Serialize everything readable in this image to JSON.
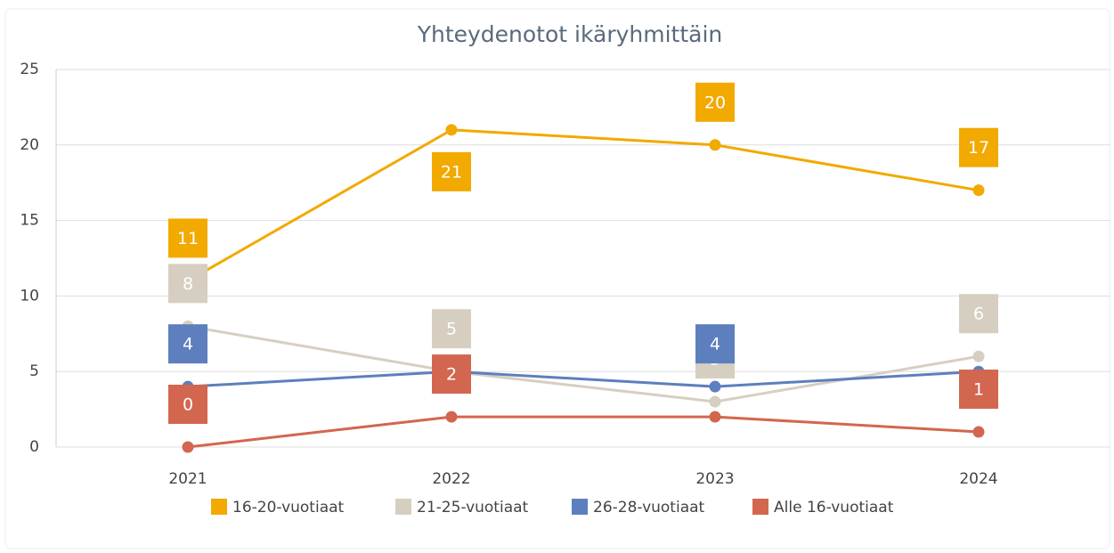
{
  "chart_data": {
    "type": "line",
    "title": "Yhteydenotot ikäryhmittäin",
    "categories": [
      "2021",
      "2022",
      "2023",
      "2024"
    ],
    "series": [
      {
        "name": "16-20-vuotiaat",
        "color": "#f2a900",
        "values": [
          11,
          21,
          20,
          17
        ]
      },
      {
        "name": "21-25-vuotiaat",
        "color": "#d6cfc1",
        "values": [
          8,
          5,
          3,
          6
        ]
      },
      {
        "name": "26-28-vuotiaat",
        "color": "#5d7fbd",
        "values": [
          4,
          5,
          4,
          5
        ]
      },
      {
        "name": "Alle 16-vuotiaat",
        "color": "#d3664f",
        "values": [
          0,
          2,
          2,
          1
        ]
      }
    ],
    "ylim": [
      0,
      25
    ],
    "yticks": [
      0,
      5,
      10,
      15,
      20,
      25
    ],
    "grid": true,
    "legend": "bottom"
  }
}
